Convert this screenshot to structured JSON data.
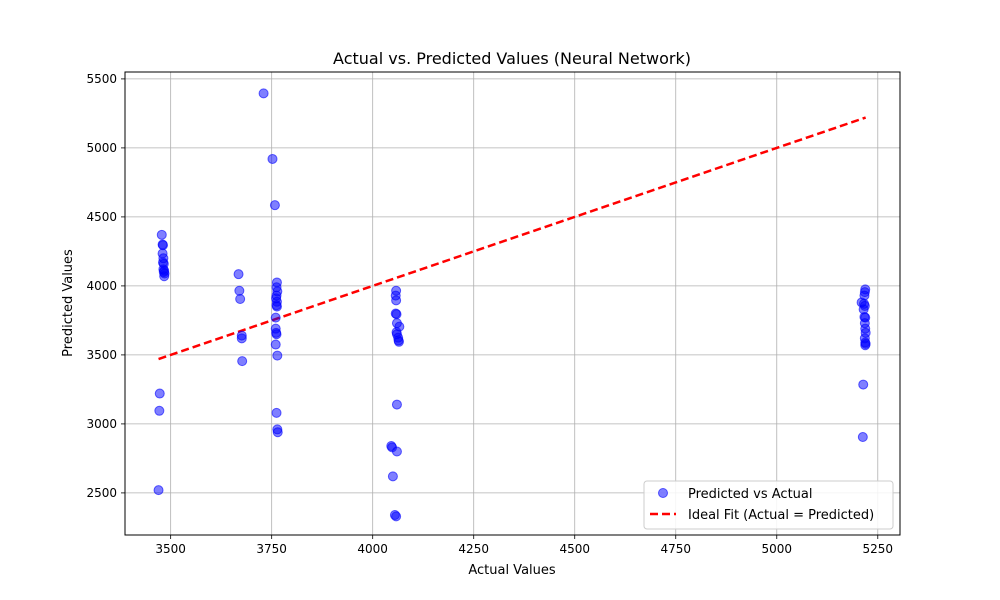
{
  "chart_data": {
    "type": "scatter",
    "title": "Actual vs. Predicted Values (Neural Network)",
    "xlabel": "Actual Values",
    "ylabel": "Predicted Values",
    "xlim": [
      3387,
      5305
    ],
    "ylim": [
      2195,
      5550
    ],
    "xticks": [
      3500,
      3750,
      4000,
      4250,
      4500,
      4750,
      5000,
      5250
    ],
    "yticks": [
      2500,
      3000,
      3500,
      4000,
      4500,
      5000,
      5500
    ],
    "grid": true,
    "legend_position": "bottom-right",
    "colors": {
      "points": "#0000ff",
      "ideal_line": "#ff0000"
    },
    "series": [
      {
        "name": "Predicted vs Actual",
        "kind": "scatter",
        "points": [
          [
            3478,
            4370
          ],
          [
            3480,
            4300
          ],
          [
            3481,
            4295
          ],
          [
            3480,
            4235
          ],
          [
            3482,
            4200
          ],
          [
            3481,
            4170
          ],
          [
            3483,
            4160
          ],
          [
            3482,
            4120
          ],
          [
            3484,
            4110
          ],
          [
            3485,
            4090
          ],
          [
            3483,
            4100
          ],
          [
            3484,
            4070
          ],
          [
            3473,
            3220
          ],
          [
            3472,
            3095
          ],
          [
            3470,
            2520
          ],
          [
            3668,
            4085
          ],
          [
            3670,
            3965
          ],
          [
            3672,
            3905
          ],
          [
            3676,
            3640
          ],
          [
            3676,
            3620
          ],
          [
            3677,
            3455
          ],
          [
            3730,
            5395
          ],
          [
            3752,
            4920
          ],
          [
            3758,
            4585
          ],
          [
            3763,
            4025
          ],
          [
            3762,
            3990
          ],
          [
            3764,
            3960
          ],
          [
            3762,
            3930
          ],
          [
            3761,
            3910
          ],
          [
            3763,
            3885
          ],
          [
            3762,
            3860
          ],
          [
            3763,
            3850
          ],
          [
            3760,
            3770
          ],
          [
            3760,
            3690
          ],
          [
            3761,
            3660
          ],
          [
            3762,
            3650
          ],
          [
            3760,
            3575
          ],
          [
            3764,
            3495
          ],
          [
            3762,
            3080
          ],
          [
            3764,
            2960
          ],
          [
            3765,
            2940
          ],
          [
            4058,
            3965
          ],
          [
            4057,
            3930
          ],
          [
            4058,
            3895
          ],
          [
            4057,
            3800
          ],
          [
            4059,
            3795
          ],
          [
            4060,
            3730
          ],
          [
            4066,
            3705
          ],
          [
            4059,
            3665
          ],
          [
            4060,
            3650
          ],
          [
            4063,
            3625
          ],
          [
            4064,
            3605
          ],
          [
            4065,
            3595
          ],
          [
            4060,
            3140
          ],
          [
            4046,
            2840
          ],
          [
            4048,
            2830
          ],
          [
            4060,
            2800
          ],
          [
            4050,
            2620
          ],
          [
            4055,
            2340
          ],
          [
            4058,
            2330
          ],
          [
            5219,
            3975
          ],
          [
            5218,
            3955
          ],
          [
            5217,
            3930
          ],
          [
            5210,
            3880
          ],
          [
            5216,
            3870
          ],
          [
            5218,
            3855
          ],
          [
            5215,
            3830
          ],
          [
            5219,
            3770
          ],
          [
            5217,
            3775
          ],
          [
            5218,
            3730
          ],
          [
            5219,
            3690
          ],
          [
            5220,
            3660
          ],
          [
            5218,
            3620
          ],
          [
            5219,
            3590
          ],
          [
            5220,
            3580
          ],
          [
            5219,
            3570
          ],
          [
            5214,
            3285
          ],
          [
            5213,
            2905
          ]
        ]
      },
      {
        "name": "Ideal Fit (Actual = Predicted)",
        "kind": "line",
        "points": [
          [
            3470,
            3470
          ],
          [
            5220,
            5220
          ]
        ]
      }
    ]
  }
}
